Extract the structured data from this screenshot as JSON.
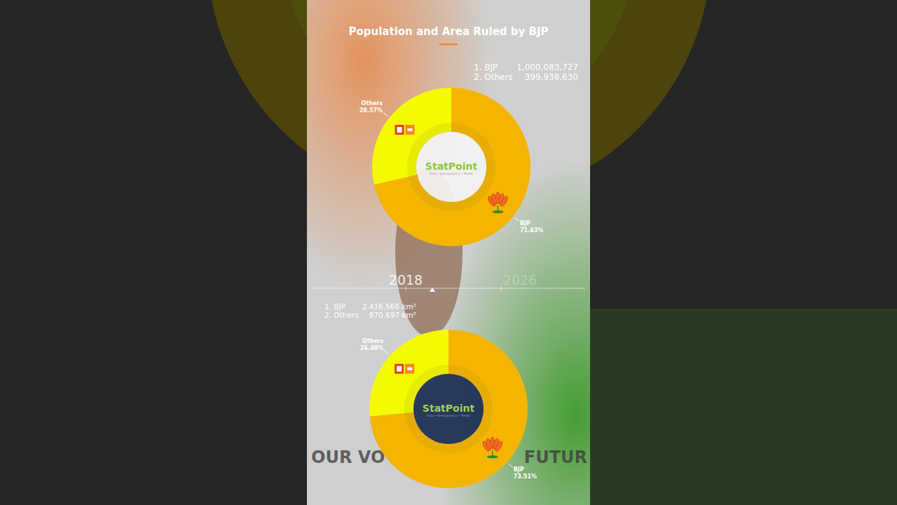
{
  "title": "Population and Area Ruled by BJP",
  "logo": "StatPoint",
  "logo_tagline": "Data • Demographics • Trends",
  "timeline": [
    "2018",
    "2026"
  ],
  "background_texts": [
    "OUR VO",
    "FUTUR"
  ],
  "chart_data": [
    {
      "type": "pie",
      "categories": [
        "BJP",
        "Others"
      ],
      "values": [
        71.43,
        28.57
      ],
      "value_labels": [
        "71.43%",
        "28.57%"
      ],
      "colors": [
        "#f5b400",
        "#f4fb00"
      ],
      "data_labels": true,
      "legend_labels": [
        "1. BJP",
        "2. Others"
      ],
      "amounts": [
        1000083727,
        399938630
      ]
    },
    {
      "type": "pie",
      "categories": [
        "BJP",
        "Others"
      ],
      "values": [
        73.51,
        26.49
      ],
      "value_labels": [
        "73.51%",
        "26.49%"
      ],
      "colors": [
        "#f5b400",
        "#f4fb00"
      ],
      "data_labels": true,
      "legend_labels": [
        "1. BJP",
        "2. Others"
      ],
      "amounts": [
        2416566,
        870697
      ],
      "amount_unit": "km²"
    }
  ]
}
